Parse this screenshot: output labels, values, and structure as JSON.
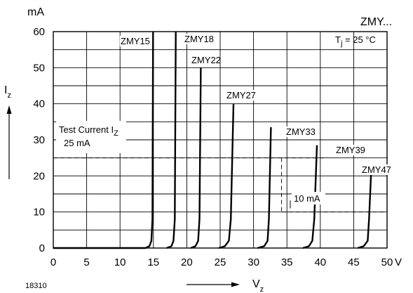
{
  "chart_data": {
    "type": "line",
    "title": "ZMY...",
    "condition": {
      "symbol": "T",
      "subscript": "j",
      "rest": " = 25 °C"
    },
    "figure_number": "18310",
    "xlabel": {
      "symbol": "V",
      "subscript": "z"
    },
    "ylabel": {
      "symbol": "I",
      "subscript": "z"
    },
    "yunit": "mA",
    "xunit": "V",
    "xlim": [
      0,
      50
    ],
    "ylim": [
      0,
      60
    ],
    "xticks": [
      "0",
      "5",
      "10",
      "15",
      "20",
      "25",
      "30",
      "35",
      "40",
      "45",
      "50"
    ],
    "yticks": [
      "0",
      "10",
      "20",
      "30",
      "40",
      "50",
      "60"
    ],
    "grid": true,
    "series": [
      {
        "name": "ZMY15",
        "points": [
          [
            0,
            0
          ],
          [
            13.8,
            0
          ],
          [
            14.4,
            0.5
          ],
          [
            14.7,
            2
          ],
          [
            14.85,
            8
          ],
          [
            14.95,
            60
          ]
        ]
      },
      {
        "name": "ZMY18",
        "points": [
          [
            17.0,
            0
          ],
          [
            17.7,
            0.5
          ],
          [
            18.0,
            2
          ],
          [
            18.2,
            8
          ],
          [
            18.35,
            60
          ]
        ]
      },
      {
        "name": "ZMY22",
        "points": [
          [
            20.6,
            0
          ],
          [
            21.3,
            0.5
          ],
          [
            21.7,
            2
          ],
          [
            21.9,
            8
          ],
          [
            22.1,
            50
          ]
        ]
      },
      {
        "name": "ZMY27",
        "points": [
          [
            24.8,
            0
          ],
          [
            25.7,
            0.5
          ],
          [
            26.3,
            2
          ],
          [
            26.6,
            8
          ],
          [
            27.0,
            40
          ]
        ]
      },
      {
        "name": "ZMY33",
        "points": [
          [
            30.6,
            0
          ],
          [
            31.6,
            0.5
          ],
          [
            32.1,
            2
          ],
          [
            32.3,
            8
          ],
          [
            32.6,
            33.5
          ]
        ]
      },
      {
        "name": "ZMY39",
        "points": [
          [
            37.4,
            0
          ],
          [
            38.3,
            0.5
          ],
          [
            38.8,
            2
          ],
          [
            39.1,
            8
          ],
          [
            39.5,
            28.5
          ]
        ]
      },
      {
        "name": "ZMY47",
        "points": [
          [
            45.6,
            0
          ],
          [
            46.5,
            0.5
          ],
          [
            47.1,
            2
          ],
          [
            47.3,
            8
          ],
          [
            47.6,
            20.5
          ]
        ]
      }
    ],
    "annotations": {
      "test_current_label": "Test Current",
      "test_current_symbol": "I",
      "test_current_subscript": "Z",
      "test_current_value_label": "25 mA",
      "test_current_value": 25,
      "delta_label": "10 mA",
      "delta_value": 10
    }
  }
}
